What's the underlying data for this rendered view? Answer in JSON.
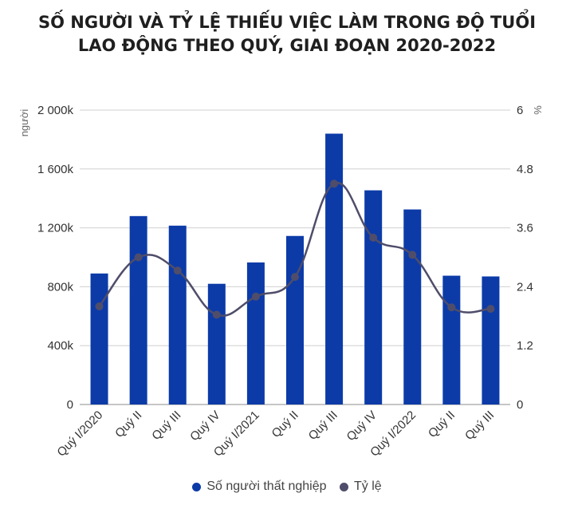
{
  "title_line1": "SỐ NGƯỜI VÀ TỶ LỆ THIẾU VIỆC LÀM TRONG ĐỘ TUỔI",
  "title_line2": "LAO ĐỘNG THEO QUÝ, GIAI ĐOẠN 2020-2022",
  "colors": {
    "bar": "#0c3ba8",
    "line": "#4f4d6a",
    "axis": "#8c8c8c",
    "grid": "#d0d0d0"
  },
  "chart_data": {
    "type": "bar",
    "title": "SỐ NGƯỜI VÀ TỶ LỆ THIẾU VIỆC LÀM TRONG ĐỘ TUỔI LAO ĐỘNG THEO QUÝ, GIAI ĐOẠN 2020-2022",
    "categories": [
      "Quý I/2020",
      "Quý II",
      "Quý III",
      "Quý IV",
      "Quý I/2021",
      "Quý II",
      "Quý III",
      "Quý IV",
      "Quý I/2022",
      "Quý II",
      "Quý III"
    ],
    "series": [
      {
        "name": "Số người thất nghiệp",
        "type": "bar",
        "axis": "left",
        "values": [
          890,
          1280,
          1215,
          820,
          965,
          1145,
          1840,
          1455,
          1325,
          875,
          870
        ]
      },
      {
        "name": "Tỷ lệ",
        "type": "line",
        "axis": "right",
        "values": [
          2.0,
          3.0,
          2.73,
          1.83,
          2.2,
          2.6,
          4.5,
          3.4,
          3.05,
          1.98,
          1.95
        ]
      }
    ],
    "y_left": {
      "label": "người",
      "ylim": [
        0,
        2000
      ],
      "ticks": [
        0,
        400,
        800,
        1200,
        1600,
        2000
      ],
      "tick_labels": [
        "0",
        "400k",
        "800k",
        "1 200k",
        "1 600k",
        "2 000k"
      ]
    },
    "y_right": {
      "label": "%",
      "ylim": [
        0,
        6
      ],
      "ticks": [
        0,
        1.2,
        2.4,
        3.6,
        4.8,
        6
      ],
      "tick_labels": [
        "0",
        "1.2",
        "2.4",
        "3.6",
        "4.8",
        "6"
      ]
    },
    "grid": true,
    "legend": "bottom"
  }
}
